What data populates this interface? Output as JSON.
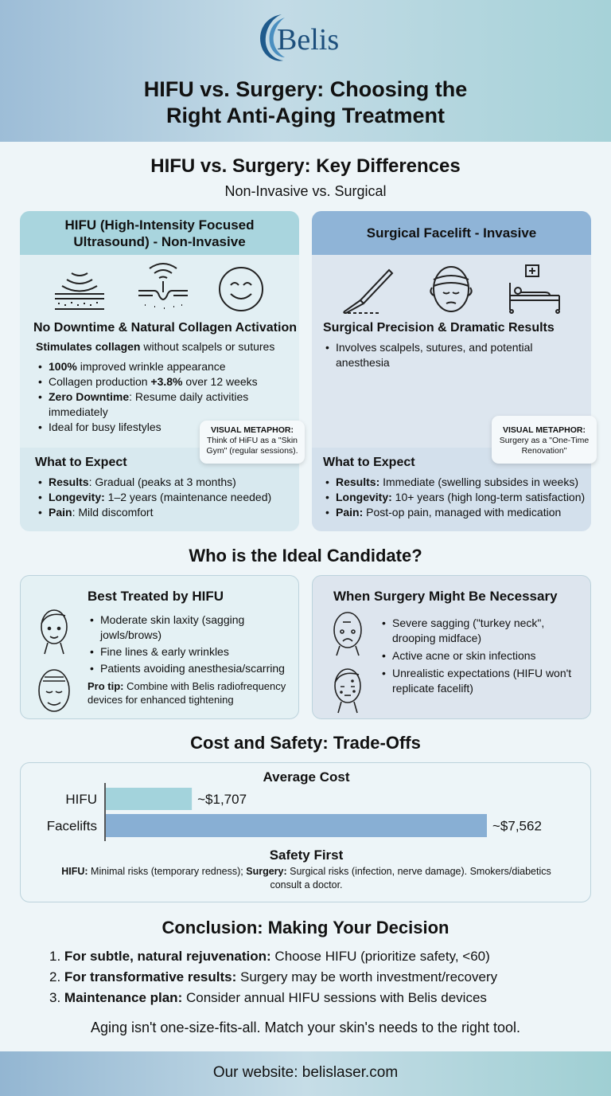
{
  "brand": {
    "logo_text": "Belis",
    "accent": "#1d4f7c"
  },
  "header": {
    "title_line1": "HIFU vs. Surgery: Choosing the",
    "title_line2": "Right Anti-Aging Treatment"
  },
  "differences": {
    "title": "HIFU vs. Surgery: Key Differences",
    "subtitle": "Non-Invasive vs. Surgical",
    "hifu": {
      "header": "HIFU (High-Intensity Focused Ultrasound) - Non-Invasive",
      "icons": [
        "ultrasound-skin-icon",
        "focused-ultrasound-icon",
        "smiley-face-icon"
      ],
      "heading": "No Downtime & Natural Collagen Activation",
      "intro_bold": "Stimulates collagen",
      "intro_rest": " without scalpels or sutures",
      "bullets": [
        {
          "bold": "100%",
          "text": " improved wrinkle appearance"
        },
        {
          "pre": "Collagen production ",
          "bold": "+3.8%",
          "text": " over 12 weeks"
        },
        {
          "bold": "Zero Downtime",
          "text": ": Resume daily activities immediately"
        },
        {
          "text": "Ideal for busy lifestyles"
        }
      ],
      "metaphor_title": "VISUAL METAPHOR:",
      "metaphor_text": "Think of HiFU as a \"Skin Gym\" (regular sessions).",
      "expect_title": "What to Expect",
      "expect": [
        {
          "bold": "Results",
          "text": ": Gradual (peaks at 3 months)"
        },
        {
          "bold": "Longevity:",
          "text": " 1–2 years (maintenance needed)"
        },
        {
          "bold": "Pain",
          "text": ": Mild discomfort"
        }
      ],
      "color": "#a9d5de"
    },
    "surgery": {
      "header": "Surgical Facelift - Invasive",
      "icons": [
        "scalpel-icon",
        "bandaged-face-icon",
        "hospital-bed-icon"
      ],
      "heading": "Surgical Precision & Dramatic Results",
      "bullets": [
        {
          "text": "Involves scalpels, sutures, and potential anesthesia"
        }
      ],
      "metaphor_title": "VISUAL METAPHOR:",
      "metaphor_text": "Surgery as a \"One-Time Renovation\"",
      "expect_title": "What to Expect",
      "expect": [
        {
          "bold": "Results:",
          "text": " Immediate (swelling subsides in weeks)"
        },
        {
          "bold": "Longevity:",
          "text": " 10+ years (high long-term satisfaction)"
        },
        {
          "bold": "Pain:",
          "text": " Post-op pain, managed with medication"
        }
      ],
      "color": "#8fb4d7"
    }
  },
  "candidate": {
    "title": "Who is the Ideal Candidate?",
    "hifu": {
      "title": "Best Treated by HIFU",
      "bullets": [
        "Moderate skin laxity (sagging jowls/brows)",
        "Fine lines & early wrinkles",
        "Patients avoiding anesthesia/scarring"
      ],
      "tip_bold": "Pro tip:",
      "tip_text": " Combine with Belis radiofrequency devices for enhanced tightening"
    },
    "surgery": {
      "title": "When Surgery Might Be Necessary",
      "bullets": [
        "Severe sagging (\"turkey neck\", drooping midface)",
        "Active acne or skin infections",
        "Unrealistic expectations (HIFU won't replicate facelift)"
      ]
    }
  },
  "cost": {
    "title": "Cost and Safety: Trade-Offs",
    "safety_title": "Safety First",
    "safety_hifu_bold": "HIFU:",
    "safety_hifu": " Minimal risks (temporary redness); ",
    "safety_surgery_bold": "Surgery:",
    "safety_surgery": " Surgical risks (infection, nerve damage). Smokers/diabetics consult a doctor."
  },
  "chart_data": {
    "type": "bar",
    "orientation": "horizontal",
    "title": "Average Cost",
    "categories": [
      "HIFU",
      "Facelifts"
    ],
    "values": [
      1707,
      7562
    ],
    "data_labels": [
      "~$1,707",
      "~$7,562"
    ],
    "colors": [
      "#a3d3dc",
      "#88afd4"
    ],
    "xlim": [
      0,
      7562
    ],
    "grid": false
  },
  "conclusion": {
    "title": "Conclusion: Making Your Decision",
    "items": [
      {
        "num": "1.",
        "bold": "For subtle, natural rejuvenation:",
        "text": " Choose HIFU (prioritize safety, <60)"
      },
      {
        "num": "2.",
        "bold": "For transformative results:",
        "text": " Surgery may be worth investment/recovery"
      },
      {
        "num": "3.",
        "bold": "Maintenance plan:",
        "text": " Consider annual HIFU sessions with Belis devices"
      }
    ],
    "tagline": "Aging isn't one-size-fits-all. Match your skin's needs to the right tool."
  },
  "footer": {
    "text": "Our website: belislaser.com"
  }
}
